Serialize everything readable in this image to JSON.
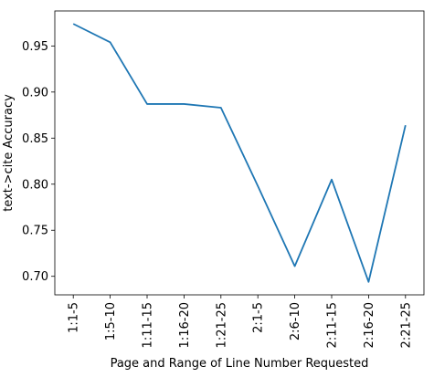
{
  "chart_data": {
    "type": "line",
    "title": "",
    "xlabel": "Page and Range of Line Number Requested",
    "ylabel": "text->cite Accuracy",
    "categories": [
      "1:1-5",
      "1:5-10",
      "1:11-15",
      "1:16-20",
      "1:21-25",
      "2:1-5",
      "2:6-10",
      "2:11-15",
      "2:16-20",
      "2:21-25"
    ],
    "series": [
      {
        "values": [
          0.974,
          0.954,
          0.887,
          0.887,
          0.883,
          0.798,
          0.711,
          0.805,
          0.694,
          0.864
        ],
        "color": "#1f77b4"
      }
    ],
    "yticks": [
      0.7,
      0.75,
      0.8,
      0.85,
      0.9,
      0.95
    ],
    "ytick_labels": [
      "0.70",
      "0.75",
      "0.80",
      "0.85",
      "0.90",
      "0.95"
    ],
    "ylim": [
      0.6799,
      0.988
    ],
    "grid": false,
    "legend": "none"
  }
}
